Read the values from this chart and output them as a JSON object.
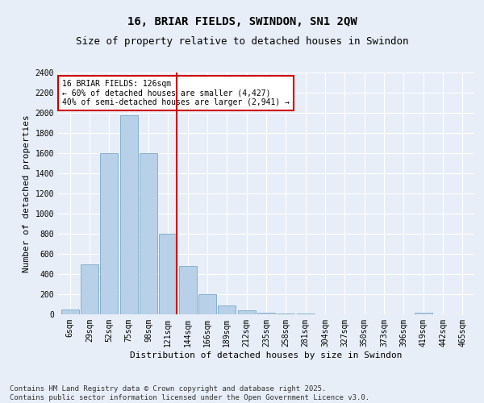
{
  "title1": "16, BRIAR FIELDS, SWINDON, SN1 2QW",
  "title2": "Size of property relative to detached houses in Swindon",
  "xlabel": "Distribution of detached houses by size in Swindon",
  "ylabel": "Number of detached properties",
  "categories": [
    "6sqm",
    "29sqm",
    "52sqm",
    "75sqm",
    "98sqm",
    "121sqm",
    "144sqm",
    "166sqm",
    "189sqm",
    "212sqm",
    "235sqm",
    "258sqm",
    "281sqm",
    "304sqm",
    "327sqm",
    "350sqm",
    "373sqm",
    "396sqm",
    "419sqm",
    "442sqm",
    "465sqm"
  ],
  "values": [
    50,
    500,
    1600,
    1980,
    1600,
    800,
    480,
    200,
    90,
    40,
    20,
    12,
    5,
    3,
    2,
    1,
    0,
    0,
    20,
    0,
    0
  ],
  "bar_color": "#b8d0e8",
  "bar_edge_color": "#7aaac8",
  "vline_index": 5,
  "vline_color": "#cc0000",
  "annotation_text": "16 BRIAR FIELDS: 126sqm\n← 60% of detached houses are smaller (4,427)\n40% of semi-detached houses are larger (2,941) →",
  "annotation_box_color": "#ffffff",
  "annotation_box_edge": "#cc0000",
  "ylim": [
    0,
    2400
  ],
  "yticks": [
    0,
    200,
    400,
    600,
    800,
    1000,
    1200,
    1400,
    1600,
    1800,
    2000,
    2200,
    2400
  ],
  "bg_color": "#e8eef8",
  "grid_color": "#ffffff",
  "footnote": "Contains HM Land Registry data © Crown copyright and database right 2025.\nContains public sector information licensed under the Open Government Licence v3.0.",
  "title_fontsize": 10,
  "subtitle_fontsize": 9,
  "axis_label_fontsize": 8,
  "tick_fontsize": 7,
  "footnote_fontsize": 6.5
}
